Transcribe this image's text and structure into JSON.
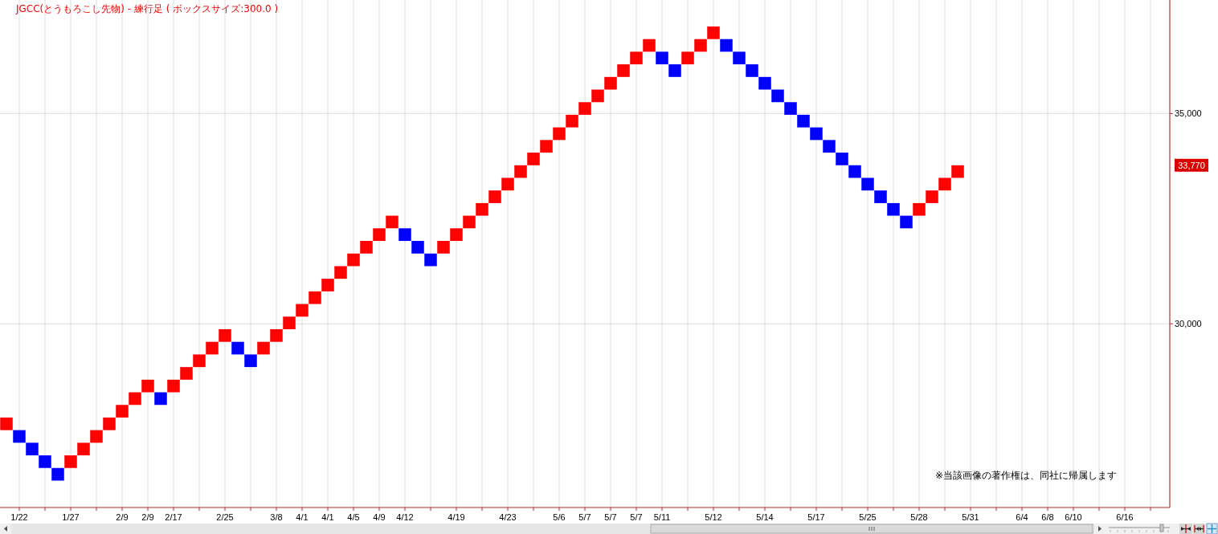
{
  "chart_data": {
    "type": "bar",
    "title": "JGCC(とうもろこし先物) - 練行足 ( ボックスサイズ:300.0 )",
    "categories": [
      null,
      "1/22",
      null,
      null,
      null,
      "1/27",
      null,
      null,
      null,
      "2/9",
      null,
      "2/9",
      null,
      "2/17",
      null,
      null,
      null,
      "2/25",
      null,
      null,
      null,
      "3/8",
      null,
      "4/1",
      null,
      "4/1",
      null,
      "4/5",
      null,
      "4/9",
      null,
      "4/12",
      null,
      null,
      null,
      "4/19",
      null,
      null,
      null,
      "4/23",
      null,
      null,
      null,
      "5/6",
      null,
      "5/7",
      null,
      "5/7",
      null,
      "5/7",
      null,
      "5/11",
      null,
      null,
      null,
      "5/12",
      null,
      null,
      null,
      "5/14",
      null,
      null,
      null,
      "5/17",
      null,
      null,
      null,
      "5/25",
      null,
      null,
      null,
      "5/28",
      null,
      null,
      null,
      "5/31",
      null,
      null,
      null,
      "6/4",
      null,
      "6/8",
      null,
      "6/10",
      null,
      null,
      null,
      "6/16",
      null,
      null,
      null
    ],
    "base": [
      27470,
      27170,
      26870,
      26570,
      26270,
      26570,
      26870,
      27170,
      27470,
      27770,
      28070,
      28370,
      28070,
      28370,
      28670,
      28970,
      29270,
      29570,
      29270,
      28970,
      29270,
      29570,
      29870,
      30170,
      30470,
      30770,
      31070,
      31370,
      31670,
      31970,
      32270,
      31970,
      31670,
      31370,
      31670,
      31970,
      32270,
      32570,
      32870,
      33170,
      33470,
      33770,
      34070,
      34370,
      34670,
      34970,
      35270,
      35570,
      35870,
      36170,
      36470,
      36170,
      35870,
      36170,
      36470,
      36770,
      36470,
      36170,
      35870,
      35570,
      35270,
      34970,
      34670,
      34370,
      34070,
      33770,
      33470,
      33170,
      32870,
      32570,
      32270,
      32570,
      32870,
      33170,
      33470,
      null,
      null,
      null,
      null,
      null,
      null,
      null,
      null,
      null,
      null,
      null,
      null,
      null,
      null,
      null,
      null
    ],
    "values": [
      300,
      300,
      300,
      300,
      300,
      300,
      300,
      300,
      300,
      300,
      300,
      300,
      300,
      300,
      300,
      300,
      300,
      300,
      300,
      300,
      300,
      300,
      300,
      300,
      300,
      300,
      300,
      300,
      300,
      300,
      300,
      300,
      300,
      300,
      300,
      300,
      300,
      300,
      300,
      300,
      300,
      300,
      300,
      300,
      300,
      300,
      300,
      300,
      300,
      300,
      300,
      300,
      300,
      300,
      300,
      300,
      300,
      300,
      300,
      300,
      300,
      300,
      300,
      300,
      300,
      300,
      300,
      300,
      300,
      300,
      300,
      300,
      300,
      300,
      300,
      null,
      null,
      null,
      null,
      null,
      null,
      null,
      null,
      null,
      null,
      null,
      null,
      null,
      null,
      null,
      null
    ],
    "colors": [
      "#ff0000",
      "#0000ff",
      "#0000ff",
      "#0000ff",
      "#0000ff",
      "#ff0000",
      "#ff0000",
      "#ff0000",
      "#ff0000",
      "#ff0000",
      "#ff0000",
      "#ff0000",
      "#0000ff",
      "#ff0000",
      "#ff0000",
      "#ff0000",
      "#ff0000",
      "#ff0000",
      "#0000ff",
      "#0000ff",
      "#ff0000",
      "#ff0000",
      "#ff0000",
      "#ff0000",
      "#ff0000",
      "#ff0000",
      "#ff0000",
      "#ff0000",
      "#ff0000",
      "#ff0000",
      "#ff0000",
      "#0000ff",
      "#0000ff",
      "#0000ff",
      "#ff0000",
      "#ff0000",
      "#ff0000",
      "#ff0000",
      "#ff0000",
      "#ff0000",
      "#ff0000",
      "#ff0000",
      "#ff0000",
      "#ff0000",
      "#ff0000",
      "#ff0000",
      "#ff0000",
      "#ff0000",
      "#ff0000",
      "#ff0000",
      "#ff0000",
      "#0000ff",
      "#0000ff",
      "#ff0000",
      "#ff0000",
      "#ff0000",
      "#0000ff",
      "#0000ff",
      "#0000ff",
      "#0000ff",
      "#0000ff",
      "#0000ff",
      "#0000ff",
      "#0000ff",
      "#0000ff",
      "#0000ff",
      "#0000ff",
      "#0000ff",
      "#0000ff",
      "#0000ff",
      "#0000ff",
      "#ff0000",
      "#ff0000",
      "#ff0000",
      "#ff0000",
      null,
      null,
      null,
      null,
      null,
      null,
      null,
      null,
      null,
      null,
      null,
      null,
      null,
      null,
      null,
      null
    ],
    "ylim": [
      25630,
      37700
    ],
    "yticks": [
      {
        "value": 30000,
        "label": "30,000"
      },
      {
        "value": 35000,
        "label": "35,000"
      }
    ],
    "grid": true,
    "annotations": [
      "※当該画像の著作権は、同社に帰属します",
      "33,770"
    ]
  }
}
